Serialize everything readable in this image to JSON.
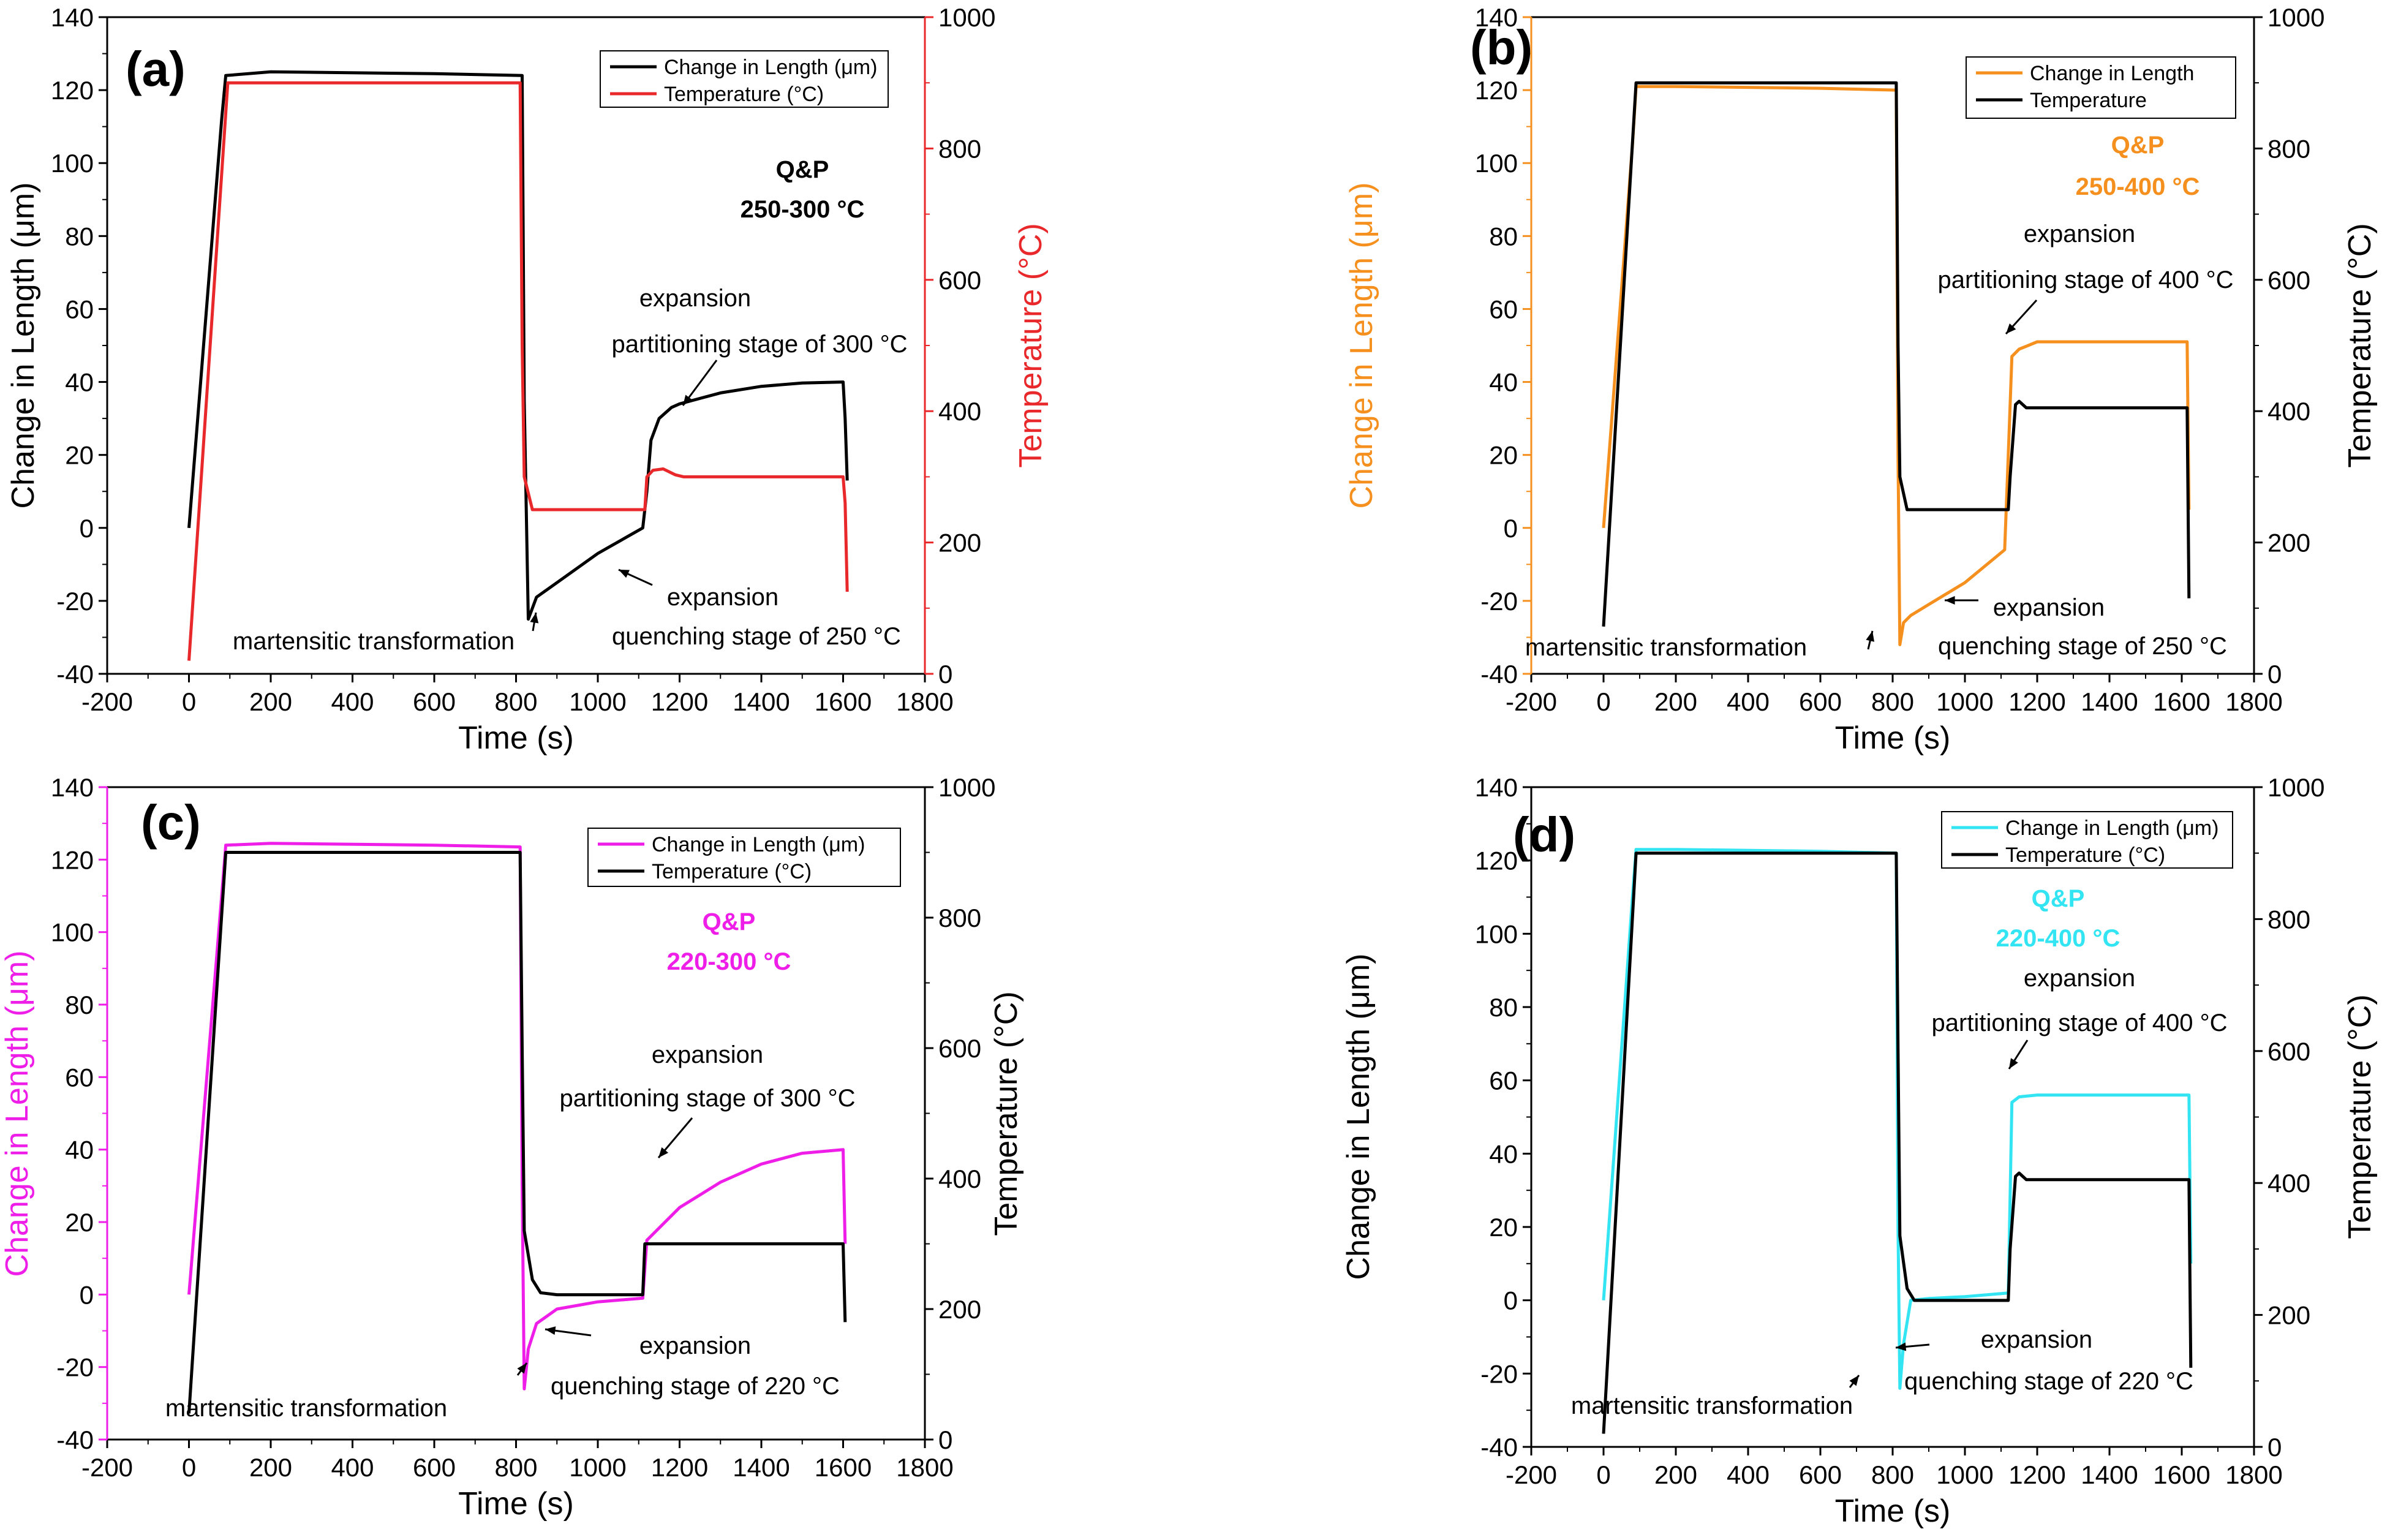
{
  "chart_data": [
    {
      "type": "line",
      "panel_label": "(a)",
      "xlabel": "Time (s)",
      "ylabel": "Change in Length (μm)",
      "y2label": "Temperature (°C)",
      "xlim": [
        -200,
        1800
      ],
      "ylim": [
        -40,
        140
      ],
      "y2lim": [
        0,
        1000
      ],
      "xticks": [
        "-200",
        "0",
        "200",
        "400",
        "600",
        "800",
        "1000",
        "1200",
        "1400",
        "1600",
        "1800"
      ],
      "yticks": [
        "-40",
        "-20",
        "0",
        "20",
        "40",
        "60",
        "80",
        "100",
        "120",
        "140"
      ],
      "y2ticks": [
        "0",
        "200",
        "400",
        "600",
        "800",
        "1000"
      ],
      "colors": {
        "length": "#000000",
        "temperature": "#e8282a",
        "left_axis": "#000000",
        "right_axis": "#e8282a",
        "qp": "#000000"
      },
      "qp_label": "Q&P",
      "qp_range": "250-300 °C",
      "legend": [
        "Change in Length (μm)",
        "Temperature (°C)"
      ],
      "annotations": {
        "expansion_top": "expansion",
        "partitioning": "partitioning stage  of 300 °C",
        "expansion_bottom": "expansion",
        "quenching": "quenching stage  of 250 °C",
        "martensitic": "martensitic transformation"
      },
      "series": [
        {
          "name": "Change in Length (μm)",
          "axis": "left",
          "x": [
            0,
            80,
            90,
            200,
            600,
            815,
            820,
            830,
            850,
            900,
            1000,
            1110,
            1120,
            1130,
            1150,
            1180,
            1200,
            1300,
            1400,
            1500,
            1600,
            1605,
            1610
          ],
          "y": [
            0,
            112,
            124,
            125,
            124.5,
            124,
            35,
            -25,
            -19,
            -15,
            -7,
            0,
            10,
            24,
            30,
            33,
            34,
            37,
            38.8,
            39.7,
            40,
            30,
            13
          ]
        },
        {
          "name": "Temperature (°C)",
          "axis": "right",
          "x": [
            0,
            95,
            810,
            815,
            820,
            840,
            1115,
            1120,
            1135,
            1160,
            1190,
            1210,
            1600,
            1605,
            1610
          ],
          "y": [
            20,
            900,
            900,
            500,
            300,
            250,
            250,
            300,
            310,
            312,
            303,
            300,
            300,
            260,
            125
          ]
        }
      ]
    },
    {
      "type": "line",
      "panel_label": "(b)",
      "xlabel": "Time (s)",
      "ylabel": "Change in Length (μm)",
      "y2label": "Temperature (°C)",
      "xlim": [
        -200,
        1800
      ],
      "ylim": [
        -40,
        140
      ],
      "y2lim": [
        0,
        1000
      ],
      "xticks": [
        "-200",
        "0",
        "200",
        "400",
        "600",
        "800",
        "1000",
        "1200",
        "1400",
        "1600",
        "1800"
      ],
      "yticks": [
        "-40",
        "-20",
        "0",
        "20",
        "40",
        "60",
        "80",
        "100",
        "120",
        "140"
      ],
      "y2ticks": [
        "0",
        "200",
        "400",
        "600",
        "800",
        "1000"
      ],
      "colors": {
        "length": "#f5901e",
        "temperature": "#000000",
        "left_axis": "#f5901e",
        "right_axis": "#000000",
        "qp": "#f5901e"
      },
      "qp_label": "Q&P",
      "qp_range": "250-400 °C",
      "legend": [
        "Change in Length",
        "Temperature"
      ],
      "annotations": {
        "expansion_top": "expansion",
        "partitioning": "partitioning stage of 400 °C",
        "expansion_bottom": "expansion",
        "quenching": "quenching stage  of 250 °C",
        "martensitic": "martensitic transformation"
      },
      "series": [
        {
          "name": "Change in Length",
          "axis": "left",
          "x": [
            0,
            80,
            90,
            200,
            600,
            810,
            815,
            820,
            830,
            850,
            900,
            1000,
            1110,
            1120,
            1130,
            1150,
            1200,
            1300,
            1400,
            1615,
            1620
          ],
          "y": [
            0,
            105,
            121,
            121,
            120.5,
            120,
            20,
            -32,
            -26,
            -24,
            -21,
            -15,
            -6,
            20,
            47,
            49,
            51,
            51,
            51,
            51,
            5
          ]
        },
        {
          "name": "Temperature",
          "axis": "right",
          "x": [
            0,
            90,
            810,
            815,
            820,
            840,
            1120,
            1125,
            1140,
            1150,
            1170,
            1615,
            1620
          ],
          "y": [
            72,
            900,
            900,
            500,
            300,
            250,
            250,
            300,
            410,
            415,
            405,
            405,
            115
          ]
        }
      ]
    },
    {
      "type": "line",
      "panel_label": "(c)",
      "xlabel": "Time (s)",
      "ylabel": "Change in Length (μm)",
      "y2label": "Temperature (°C)",
      "xlim": [
        -200,
        1800
      ],
      "ylim": [
        -40,
        140
      ],
      "y2lim": [
        0,
        1000
      ],
      "xticks": [
        "-200",
        "0",
        "200",
        "400",
        "600",
        "800",
        "1000",
        "1200",
        "1400",
        "1600",
        "1800"
      ],
      "yticks": [
        "-40",
        "-20",
        "0",
        "20",
        "40",
        "60",
        "80",
        "100",
        "120",
        "140"
      ],
      "y2ticks": [
        "0",
        "200",
        "400",
        "600",
        "800",
        "1000"
      ],
      "colors": {
        "length": "#ee1ee8",
        "temperature": "#000000",
        "left_axis": "#ee1ee8",
        "right_axis": "#000000",
        "qp": "#ee1ee8"
      },
      "qp_label": "Q&P",
      "qp_range": "220-300 °C",
      "legend": [
        "Change in Length (μm)",
        "Temperature (°C)"
      ],
      "annotations": {
        "expansion_top": "expansion",
        "partitioning": "partitioning stage  of  300 °C",
        "expansion_bottom": "expansion",
        "quenching": "quenching stage  of 220 °C",
        "martensitic": "martensitic transformation"
      },
      "series": [
        {
          "name": "Change in Length (μm)",
          "axis": "left",
          "x": [
            0,
            80,
            90,
            200,
            600,
            810,
            815,
            820,
            830,
            850,
            900,
            1000,
            1110,
            1120,
            1200,
            1300,
            1400,
            1500,
            1600,
            1605
          ],
          "y": [
            0,
            110,
            124,
            124.5,
            124,
            123.5,
            30,
            -26,
            -15,
            -8,
            -4,
            -2,
            -1,
            15,
            24,
            31,
            36,
            39,
            40,
            14
          ]
        },
        {
          "name": "Temperature (°C)",
          "axis": "right",
          "x": [
            0,
            90,
            810,
            815,
            820,
            840,
            860,
            900,
            1110,
            1115,
            1600,
            1605
          ],
          "y": [
            40,
            900,
            900,
            600,
            320,
            245,
            225,
            222,
            222,
            300,
            300,
            180
          ]
        }
      ]
    },
    {
      "type": "line",
      "panel_label": "(d)",
      "xlabel": "Time (s)",
      "ylabel": "Change in Length (μm)",
      "y2label": "Temperature (°C)",
      "xlim": [
        -200,
        1800
      ],
      "ylim": [
        -40,
        140
      ],
      "y2lim": [
        0,
        1000
      ],
      "xticks": [
        "-200",
        "0",
        "200",
        "400",
        "600",
        "800",
        "1000",
        "1200",
        "1400",
        "1600",
        "1800"
      ],
      "yticks": [
        "-40",
        "-20",
        "0",
        "20",
        "40",
        "60",
        "80",
        "100",
        "120",
        "140"
      ],
      "y2ticks": [
        "0",
        "200",
        "400",
        "600",
        "800",
        "1000"
      ],
      "colors": {
        "length": "#33e5f2",
        "temperature": "#000000",
        "left_axis": "#000000",
        "right_axis": "#000000",
        "qp": "#33e5f2"
      },
      "qp_label": "Q&P",
      "qp_range": "220-400 °C",
      "legend": [
        "Change in Length (μm)",
        "Temperature (°C)"
      ],
      "annotations": {
        "expansion_top": "expansion",
        "partitioning": "partitioning stage   of 400 °C",
        "expansion_bottom": "expansion",
        "quenching": "quenching stage  of 220 °C",
        "martensitic": "martensitic transformation"
      },
      "series": [
        {
          "name": "Change in Length (μm)",
          "axis": "left",
          "x": [
            0,
            80,
            90,
            200,
            600,
            810,
            815,
            820,
            830,
            850,
            900,
            1000,
            1120,
            1130,
            1150,
            1200,
            1300,
            1620,
            1625
          ],
          "y": [
            0,
            110,
            123,
            123,
            122.5,
            122,
            20,
            -24,
            -12,
            0,
            0.5,
            1,
            2,
            54,
            55.5,
            56,
            56,
            56,
            10
          ]
        },
        {
          "name": "Temperature (°C)",
          "axis": "right",
          "x": [
            0,
            90,
            810,
            815,
            820,
            840,
            860,
            900,
            1120,
            1125,
            1140,
            1150,
            1170,
            1620,
            1625
          ],
          "y": [
            20,
            900,
            900,
            600,
            320,
            240,
            222,
            222,
            222,
            300,
            410,
            415,
            405,
            405,
            120
          ]
        }
      ]
    }
  ]
}
